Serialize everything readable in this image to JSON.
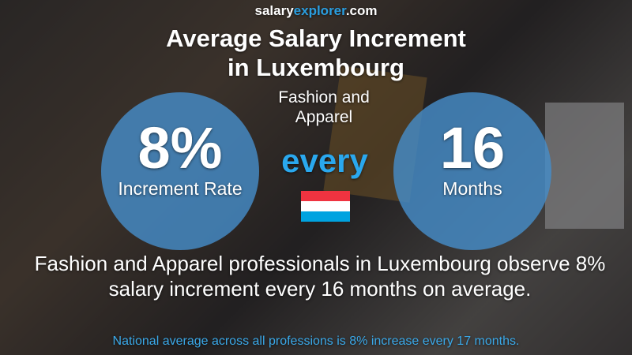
{
  "brand": {
    "part1": "salary",
    "part2": "explorer",
    "part3": ".com"
  },
  "title_line1": "Average Salary Increment",
  "title_line2": "in Luxembourg",
  "subtitle_line1": "Fashion and",
  "subtitle_line2": "Apparel",
  "left_circle": {
    "value": "8%",
    "label": "Increment Rate"
  },
  "middle": "every",
  "right_circle": {
    "value": "16",
    "label": "Months"
  },
  "flag_colors": [
    "#ef3340",
    "#ffffff",
    "#00a3e0"
  ],
  "description_line1": "Fashion and Apparel professionals in Luxembourg observe 8%",
  "description_line2": "salary increment every 16 months on average.",
  "footer": "National average across all professions is 8% increase every 17 months."
}
